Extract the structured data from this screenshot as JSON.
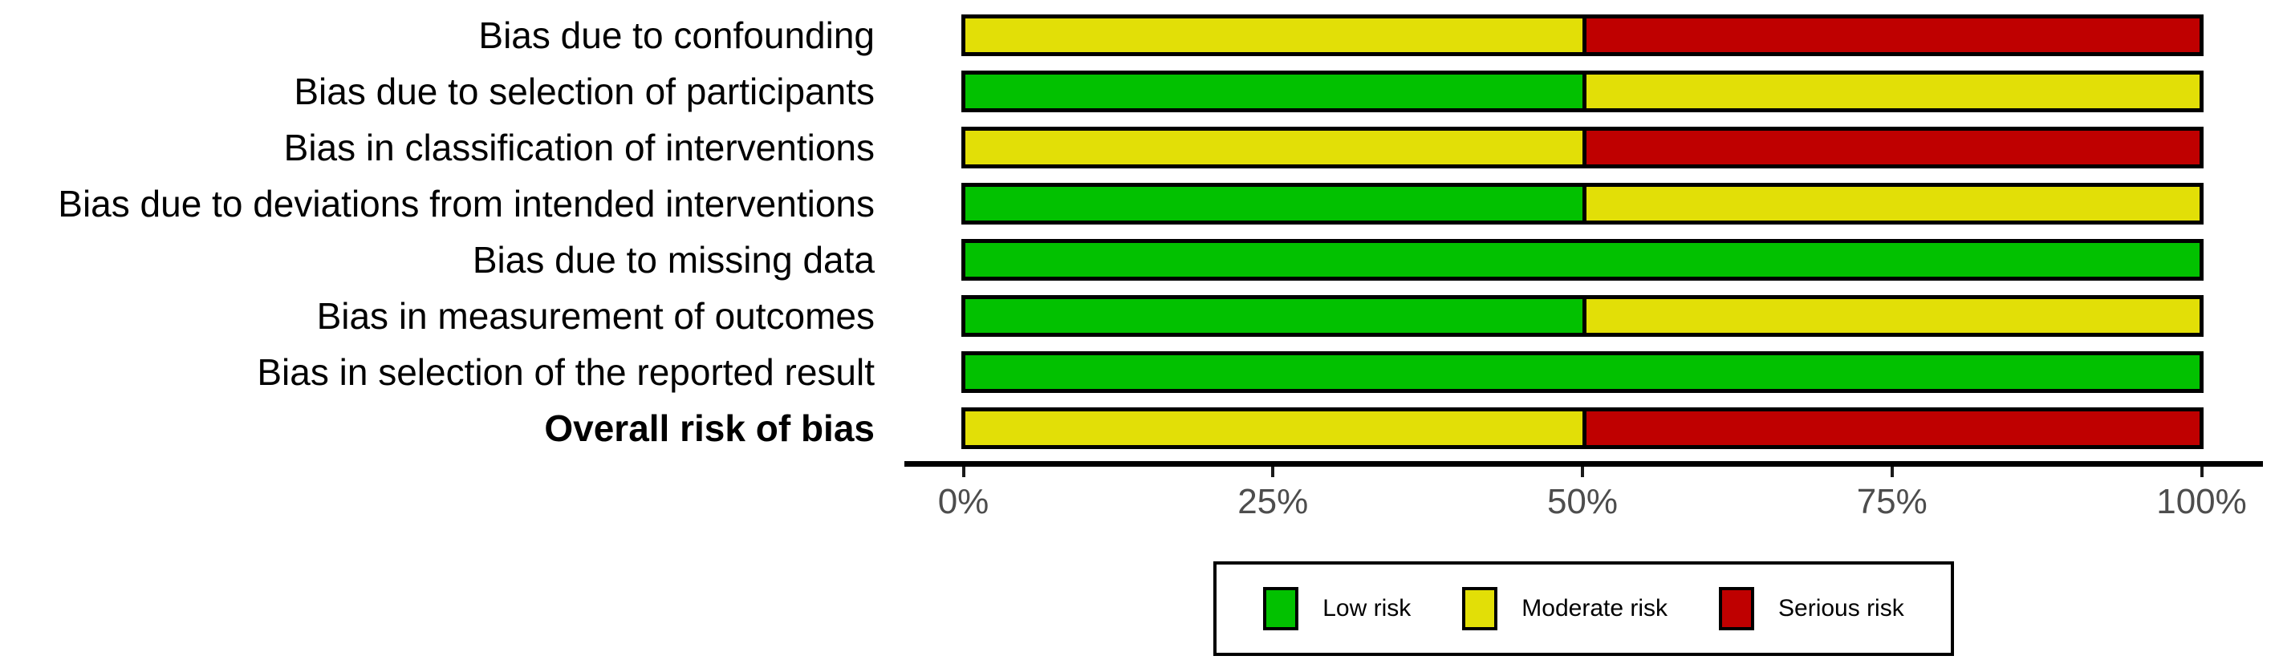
{
  "chart_data": {
    "type": "bar",
    "orientation": "horizontal-stacked",
    "title": "",
    "xlabel": "",
    "ylabel": "",
    "xlim": [
      0,
      100
    ],
    "x_ticks": [
      "0%",
      "25%",
      "50%",
      "75%",
      "100%"
    ],
    "grid": "off",
    "legend_position": "bottom",
    "categories": [
      "Bias due to confounding",
      "Bias due to selection of participants",
      "Bias in classification of interventions",
      "Bias due to deviations from intended interventions",
      "Bias due to missing data",
      "Bias in measurement of outcomes",
      "Bias in selection of the reported result",
      "Overall risk of bias"
    ],
    "bold_categories": [
      "Overall risk of bias"
    ],
    "series": [
      {
        "name": "Low risk",
        "color": "#02C100",
        "values": [
          0,
          50,
          0,
          50,
          100,
          50,
          100,
          0
        ]
      },
      {
        "name": "Moderate risk",
        "color": "#E2DF07",
        "values": [
          50,
          50,
          50,
          50,
          0,
          50,
          0,
          50
        ]
      },
      {
        "name": "Serious risk",
        "color": "#BF0000",
        "values": [
          50,
          0,
          50,
          0,
          0,
          0,
          0,
          50
        ]
      }
    ],
    "bar_border_color": "#000000",
    "axis_line_color": "#000000",
    "tick_label_color": "#4d4d4d"
  },
  "legend": {
    "items": [
      {
        "label": "Low risk",
        "color": "#02C100"
      },
      {
        "label": "Moderate risk",
        "color": "#E2DF07"
      },
      {
        "label": "Serious risk",
        "color": "#BF0000"
      }
    ]
  }
}
